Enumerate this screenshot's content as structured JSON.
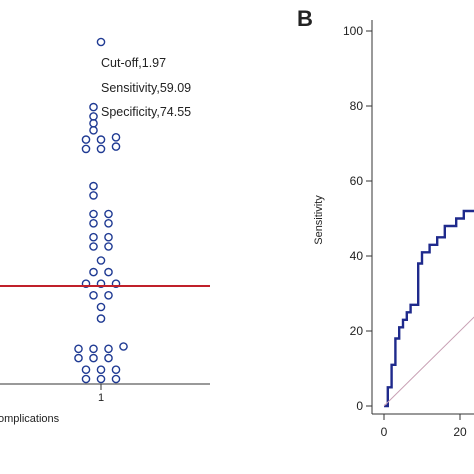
{
  "chart_data": [
    {
      "type": "scatter",
      "panel_label": "",
      "annotations": [
        "Cut-off,1.97",
        "Sensitivity,59.09",
        "Specificity,74.55"
      ],
      "x_tick_labels": [
        "1"
      ],
      "xlabel": "omplications",
      "cutoff_line_color": "#c0202a",
      "point_color": "#1f3a93",
      "points": [
        {
          "x": 1.0,
          "v": 3.02
        },
        {
          "x": 0.985,
          "v": 2.74
        },
        {
          "x": 0.985,
          "v": 2.7
        },
        {
          "x": 0.985,
          "v": 2.67
        },
        {
          "x": 0.985,
          "v": 2.64
        },
        {
          "x": 0.97,
          "v": 2.6
        },
        {
          "x": 1.0,
          "v": 2.6
        },
        {
          "x": 1.03,
          "v": 2.61
        },
        {
          "x": 0.97,
          "v": 2.56
        },
        {
          "x": 1.0,
          "v": 2.56
        },
        {
          "x": 1.03,
          "v": 2.57
        },
        {
          "x": 0.985,
          "v": 2.4
        },
        {
          "x": 0.985,
          "v": 2.36
        },
        {
          "x": 0.985,
          "v": 2.28
        },
        {
          "x": 1.015,
          "v": 2.28
        },
        {
          "x": 0.985,
          "v": 2.24
        },
        {
          "x": 1.015,
          "v": 2.24
        },
        {
          "x": 0.985,
          "v": 2.18
        },
        {
          "x": 1.015,
          "v": 2.18
        },
        {
          "x": 0.985,
          "v": 2.14
        },
        {
          "x": 1.015,
          "v": 2.14
        },
        {
          "x": 1.0,
          "v": 2.08
        },
        {
          "x": 0.985,
          "v": 2.03
        },
        {
          "x": 1.015,
          "v": 2.03
        },
        {
          "x": 0.97,
          "v": 1.98
        },
        {
          "x": 1.0,
          "v": 1.98
        },
        {
          "x": 1.03,
          "v": 1.98
        },
        {
          "x": 0.985,
          "v": 1.93
        },
        {
          "x": 1.015,
          "v": 1.93
        },
        {
          "x": 1.0,
          "v": 1.88
        },
        {
          "x": 1.0,
          "v": 1.83
        },
        {
          "x": 0.955,
          "v": 1.7
        },
        {
          "x": 0.985,
          "v": 1.7
        },
        {
          "x": 1.015,
          "v": 1.7
        },
        {
          "x": 1.045,
          "v": 1.71
        },
        {
          "x": 0.955,
          "v": 1.66
        },
        {
          "x": 0.985,
          "v": 1.66
        },
        {
          "x": 1.015,
          "v": 1.66
        },
        {
          "x": 0.97,
          "v": 1.61
        },
        {
          "x": 1.0,
          "v": 1.61
        },
        {
          "x": 1.03,
          "v": 1.61
        },
        {
          "x": 0.97,
          "v": 1.57
        },
        {
          "x": 1.0,
          "v": 1.57
        },
        {
          "x": 1.03,
          "v": 1.57
        }
      ],
      "cutoff": 1.97
    },
    {
      "type": "line",
      "panel_label": "B",
      "ylabel": "Sensitivity",
      "xlabel": "",
      "y_ticks": [
        0,
        20,
        40,
        60,
        80,
        100
      ],
      "x_ticks": [
        0,
        20
      ],
      "ylim": [
        0,
        100
      ],
      "xlim": [
        0,
        100
      ],
      "grid": false,
      "series": [
        {
          "color": "#1f2a8c",
          "x": [
            0,
            1,
            1,
            2,
            2,
            3,
            3,
            4,
            4,
            5,
            5,
            6,
            6,
            7,
            7,
            9,
            9,
            10,
            10,
            12,
            12,
            14,
            14,
            16,
            16,
            19,
            19,
            21,
            21,
            24,
            24
          ],
          "y": [
            0,
            0,
            5,
            5,
            11,
            11,
            18,
            18,
            21,
            21,
            23,
            23,
            25,
            25,
            27,
            27,
            38,
            38,
            41,
            41,
            43,
            43,
            45,
            45,
            48,
            48,
            50,
            50,
            52,
            52,
            54
          ]
        },
        {
          "color": "#c8a0b4",
          "x": [
            0,
            24
          ],
          "y": [
            0,
            24
          ]
        }
      ]
    }
  ]
}
